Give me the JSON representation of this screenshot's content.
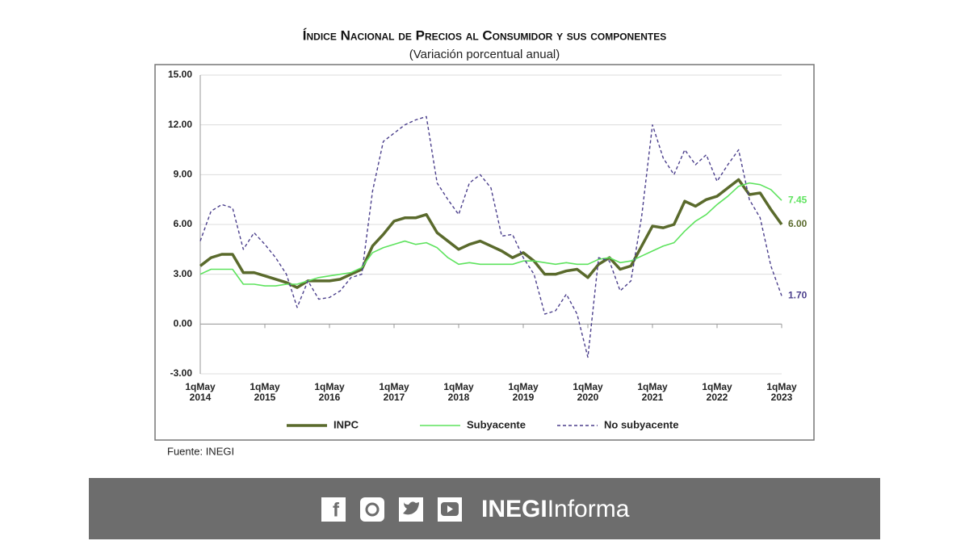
{
  "chart_data": {
    "type": "line",
    "title": "Índice Nacional de Precios al Consumidor y sus componentes",
    "subtitle": "(Variación porcentual anual)",
    "categories": [
      "1qMay 2014",
      null,
      null,
      null,
      null,
      null,
      "1qMay 2015",
      null,
      null,
      null,
      null,
      null,
      "1qMay 2016",
      null,
      null,
      null,
      null,
      null,
      "1qMay 2017",
      null,
      null,
      null,
      null,
      null,
      "1qMay 2018",
      null,
      null,
      null,
      null,
      null,
      "1qMay 2019",
      null,
      null,
      null,
      null,
      null,
      "1qMay 2020",
      null,
      null,
      null,
      null,
      null,
      "1qMay 2021",
      null,
      null,
      null,
      null,
      null,
      "1qMay 2022",
      null,
      null,
      null,
      null,
      null,
      "1qMay 2023"
    ],
    "series": [
      {
        "name": "INPC",
        "color": "#5a6a2c",
        "width": 3.5,
        "dashed": false,
        "last_label": "6.00",
        "values": [
          3.5,
          4.0,
          4.2,
          4.2,
          3.1,
          3.1,
          2.9,
          2.7,
          2.5,
          2.2,
          2.6,
          2.6,
          2.6,
          2.7,
          3.0,
          3.3,
          4.7,
          5.4,
          6.2,
          6.4,
          6.4,
          6.6,
          5.5,
          5.0,
          4.5,
          4.8,
          5.0,
          4.7,
          4.4,
          4.0,
          4.3,
          3.8,
          3.0,
          3.0,
          3.2,
          3.3,
          2.8,
          3.6,
          4.0,
          3.3,
          3.5,
          4.7,
          5.9,
          5.8,
          6.0,
          7.4,
          7.1,
          7.5,
          7.7,
          8.2,
          8.7,
          7.8,
          7.9,
          6.9,
          6.0
        ]
      },
      {
        "name": "Subyacente",
        "color": "#5ee35e",
        "width": 1.6,
        "dashed": false,
        "last_label": "7.45",
        "values": [
          3.0,
          3.3,
          3.3,
          3.3,
          2.4,
          2.4,
          2.3,
          2.3,
          2.4,
          2.4,
          2.6,
          2.8,
          2.9,
          3.0,
          3.1,
          3.4,
          4.3,
          4.6,
          4.8,
          5.0,
          4.8,
          4.9,
          4.6,
          4.0,
          3.6,
          3.7,
          3.6,
          3.6,
          3.6,
          3.6,
          3.8,
          3.8,
          3.7,
          3.6,
          3.7,
          3.6,
          3.6,
          3.9,
          4.0,
          3.7,
          3.8,
          4.1,
          4.4,
          4.7,
          4.9,
          5.6,
          6.2,
          6.6,
          7.2,
          7.7,
          8.3,
          8.5,
          8.4,
          8.1,
          7.45
        ]
      },
      {
        "name": "No subyacente",
        "color": "#4b3f8c",
        "width": 1.4,
        "dashed": true,
        "last_label": "1.70",
        "values": [
          5.0,
          6.8,
          7.2,
          7.0,
          4.5,
          5.5,
          4.8,
          4.0,
          3.0,
          1.0,
          2.6,
          1.5,
          1.6,
          2.0,
          2.8,
          3.0,
          8.0,
          11.0,
          11.5,
          12.0,
          12.3,
          12.5,
          8.5,
          7.5,
          6.6,
          8.5,
          9.0,
          8.2,
          5.3,
          5.4,
          4.0,
          3.0,
          0.6,
          0.8,
          1.8,
          0.6,
          -2.0,
          4.0,
          3.8,
          2.0,
          2.6,
          6.5,
          12.0,
          10.0,
          9.0,
          10.5,
          9.6,
          10.2,
          8.6,
          9.6,
          10.5,
          7.5,
          6.4,
          3.5,
          1.7
        ]
      }
    ],
    "ylim": [
      -3,
      15
    ],
    "yticks": [
      {
        "value": -3,
        "label": "-3.00"
      },
      {
        "value": 0,
        "label": "0.00"
      },
      {
        "value": 3,
        "label": "3.00"
      },
      {
        "value": 6,
        "label": "6.00"
      },
      {
        "value": 9,
        "label": "9.00"
      },
      {
        "value": 12,
        "label": "12.00"
      },
      {
        "value": 15,
        "label": "15.00"
      }
    ],
    "grid": true
  },
  "source": "Fuente: INEGI",
  "footer": {
    "brand_bold": "INEGI",
    "brand_light": "Informa"
  }
}
